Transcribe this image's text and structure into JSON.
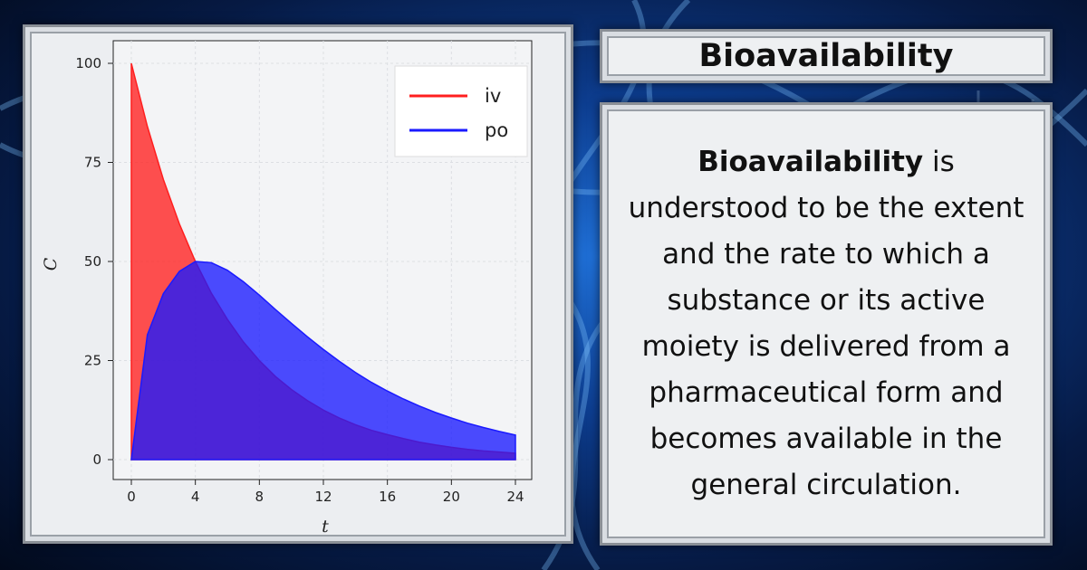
{
  "header": {
    "title": "Bioavailability"
  },
  "definition": {
    "term": "Bioavailability",
    "text": " is understood to be the extent and the rate to which a substance or its active moiety is delivered from a pharmaceutical form and becomes available in the general circulation."
  },
  "colors": {
    "iv": "#ff1f1f",
    "po": "#1a1aff",
    "background": "#0d3d8f",
    "panel": "#eef0f2"
  },
  "chart_data": {
    "type": "area",
    "xlabel": "t",
    "ylabel": "C",
    "xlim": [
      0,
      24
    ],
    "ylim": [
      0,
      100
    ],
    "xticks": [
      0,
      4,
      8,
      12,
      16,
      20,
      24
    ],
    "yticks": [
      0,
      25,
      50,
      75,
      100
    ],
    "grid": true,
    "legend_position": "top-right",
    "x": [
      0,
      1,
      2,
      3,
      4,
      5,
      6,
      7,
      8,
      9,
      10,
      11,
      12,
      13,
      14,
      15,
      16,
      17,
      18,
      19,
      20,
      21,
      22,
      23,
      24
    ],
    "series": [
      {
        "name": "iv",
        "values": [
          100,
          84.1,
          70.7,
          59.5,
          50,
          42.0,
          35.4,
          29.7,
          25.0,
          21.0,
          17.7,
          14.9,
          12.5,
          10.5,
          8.8,
          7.4,
          6.3,
          5.3,
          4.4,
          3.7,
          3.1,
          2.6,
          2.2,
          1.9,
          1.6
        ]
      },
      {
        "name": "po",
        "values": [
          0,
          31.5,
          41.9,
          47.5,
          50,
          49.7,
          47.8,
          44.9,
          41.5,
          37.9,
          34.4,
          31.0,
          27.8,
          24.8,
          22.0,
          19.5,
          17.3,
          15.3,
          13.5,
          11.9,
          10.5,
          9.2,
          8.1,
          7.1,
          6.2
        ]
      }
    ]
  }
}
